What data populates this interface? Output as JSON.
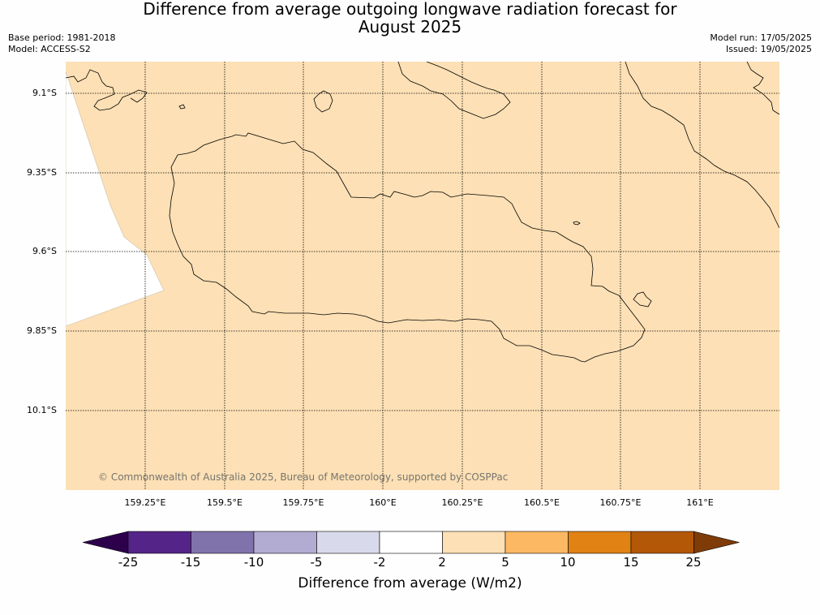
{
  "title_lines": [
    "Difference from average outgoing longwave radiation forecast for",
    "August 2025"
  ],
  "meta": {
    "base_period": "Base period: 1981-2018",
    "model": "Model: ACCESS-S2",
    "model_run": "Model run: 17/05/2025",
    "issued": "Issued: 19/05/2025"
  },
  "map": {
    "fill_color": "#fde0b5",
    "lat_labels": [
      "9.1°S",
      "9.35°S",
      "9.6°S",
      "9.85°S",
      "10.1°S"
    ],
    "lon_labels": [
      "159.25°E",
      "159.5°E",
      "159.75°E",
      "160°E",
      "160.25°E",
      "160.5°E",
      "160.75°E",
      "161°E"
    ],
    "copyright": "© Commonwealth of Australia 2025, Bureau of Meteorology, supported by COSPPac"
  },
  "colorbar": {
    "ticks": [
      "-25",
      "-15",
      "-10",
      "-5",
      "-2",
      "2",
      "5",
      "10",
      "15",
      "25"
    ],
    "colors": [
      "#552489",
      "#8073ac",
      "#b2abd2",
      "#d8daeb",
      "#ffffff",
      "#fde0b5",
      "#fdb863",
      "#e08214",
      "#b35806"
    ],
    "under_color": "#2d004b",
    "over_color": "#7f3b08",
    "label": "Difference from average (W/m2)"
  }
}
